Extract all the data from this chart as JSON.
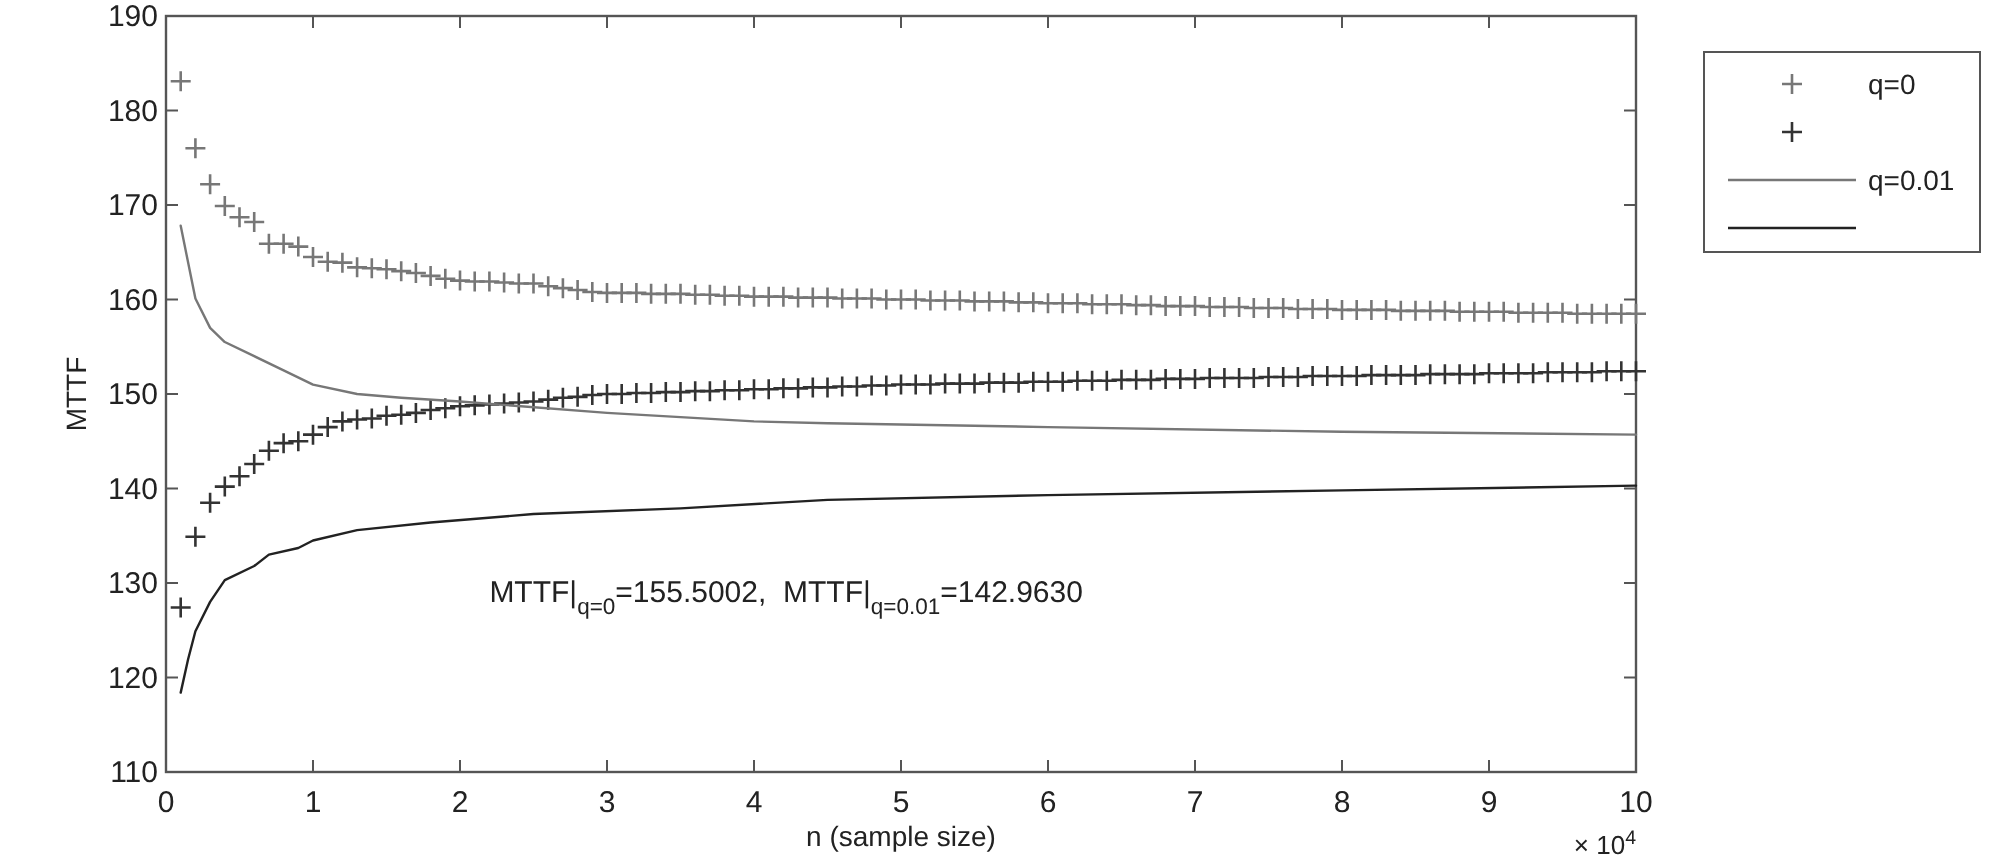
{
  "chart_data": {
    "type": "scatter",
    "xlabel": "n (sample size)",
    "ylabel": "MTTF",
    "x": [
      0.1,
      0.2,
      0.3,
      0.4,
      0.5,
      0.6,
      0.7,
      0.8,
      0.9,
      1.0,
      1.1,
      1.2,
      1.3,
      1.4,
      1.5,
      1.6,
      1.7,
      1.8,
      1.9,
      2.0,
      2.1,
      2.2,
      2.3,
      2.4,
      2.5,
      2.6,
      2.7,
      2.8,
      2.9,
      3.0,
      3.1,
      3.2,
      3.3,
      3.4,
      3.5,
      3.6,
      3.7,
      3.8,
      3.9,
      4.0,
      4.1,
      4.2,
      4.3,
      4.4,
      4.5,
      4.6,
      4.7,
      4.8,
      4.9,
      5.0,
      5.1,
      5.2,
      5.3,
      5.4,
      5.5,
      5.6,
      5.7,
      5.8,
      5.9,
      6.0,
      6.1,
      6.2,
      6.3,
      6.4,
      6.5,
      6.6,
      6.7,
      6.8,
      6.9,
      7.0,
      7.1,
      7.2,
      7.3,
      7.4,
      7.5,
      7.6,
      7.7,
      7.8,
      7.9,
      8.0,
      8.1,
      8.2,
      8.3,
      8.4,
      8.5,
      8.6,
      8.7,
      8.8,
      8.9,
      9.0,
      9.1,
      9.2,
      9.3,
      9.4,
      9.5,
      9.6,
      9.7,
      9.8,
      9.9,
      10.0
    ],
    "series": [
      {
        "name": "q=0",
        "marker": "cross",
        "color": "#777777",
        "values": [
          183.1,
          176,
          172.2,
          169.9,
          168.7,
          168.2,
          165.9,
          165.9,
          165.6,
          164.5,
          164,
          163.9,
          163.4,
          163.3,
          163.2,
          163,
          162.8,
          162.5,
          162.2,
          162,
          161.9,
          161.9,
          161.8,
          161.7,
          161.7,
          161.4,
          161.2,
          161,
          160.8,
          160.7,
          160.7,
          160.7,
          160.6,
          160.6,
          160.6,
          160.5,
          160.5,
          160.4,
          160.4,
          160.3,
          160.3,
          160.3,
          160.2,
          160.2,
          160.2,
          160.1,
          160.1,
          160.1,
          160,
          160,
          160,
          159.9,
          159.9,
          159.9,
          159.8,
          159.8,
          159.8,
          159.7,
          159.7,
          159.6,
          159.6,
          159.6,
          159.5,
          159.5,
          159.5,
          159.4,
          159.4,
          159.3,
          159.3,
          159.3,
          159.2,
          159.2,
          159.2,
          159.1,
          159.1,
          159.1,
          159,
          159,
          159,
          158.9,
          158.9,
          158.9,
          158.9,
          158.8,
          158.8,
          158.8,
          158.8,
          158.7,
          158.7,
          158.7,
          158.7,
          158.6,
          158.6,
          158.6,
          158.6,
          158.5,
          158.5,
          158.5,
          158.5,
          158.5
        ]
      },
      {
        "marker": "cross",
        "color": "#333333",
        "values": [
          127.4,
          134.9,
          138.5,
          140.2,
          141.3,
          142.6,
          144,
          144.8,
          145,
          145.7,
          146.5,
          147.1,
          147.3,
          147.4,
          147.7,
          147.8,
          148,
          148.3,
          148.5,
          148.7,
          148.8,
          148.9,
          149,
          149.1,
          149.2,
          149.4,
          149.6,
          149.7,
          149.9,
          150,
          150,
          150.1,
          150.1,
          150.2,
          150.2,
          150.3,
          150.3,
          150.4,
          150.4,
          150.5,
          150.5,
          150.6,
          150.6,
          150.7,
          150.7,
          150.8,
          150.8,
          150.9,
          150.9,
          151,
          151,
          151,
          151.1,
          151.1,
          151.1,
          151.2,
          151.2,
          151.2,
          151.3,
          151.3,
          151.3,
          151.4,
          151.4,
          151.4,
          151.5,
          151.5,
          151.5,
          151.6,
          151.6,
          151.6,
          151.7,
          151.7,
          151.7,
          151.7,
          151.8,
          151.8,
          151.8,
          151.9,
          151.9,
          151.9,
          151.9,
          152,
          152,
          152,
          152,
          152.1,
          152.1,
          152.1,
          152.1,
          152.2,
          152.2,
          152.2,
          152.2,
          152.3,
          152.3,
          152.3,
          152.3,
          152.4,
          152.4,
          152.4
        ]
      },
      {
        "name": "q=0.01",
        "type": "line",
        "marker": "none",
        "line_style": "solid",
        "color": "#777777",
        "x": [
          0.1,
          0.2,
          0.3,
          0.4,
          0.6,
          0.8,
          1.0,
          1.3,
          1.6,
          2.0,
          3.0,
          4.0,
          4.5,
          6.0,
          8.0,
          10.0
        ],
        "values": [
          167.8,
          160.1,
          157,
          155.5,
          154,
          152.5,
          151,
          150,
          149.6,
          149.2,
          148,
          147.1,
          146.9,
          146.5,
          146,
          145.7
        ]
      },
      {
        "type": "line",
        "marker": "none",
        "line_style": "solid",
        "color": "#222222",
        "x": [
          0.1,
          0.15,
          0.2,
          0.3,
          0.4,
          0.6,
          0.7,
          0.9,
          1.0,
          1.3,
          1.8,
          2.5,
          3.5,
          4.5,
          6.0,
          8.0,
          10.0
        ],
        "values": [
          118.4,
          121.9,
          124.9,
          128,
          130.3,
          131.8,
          133,
          133.7,
          134.5,
          135.6,
          136.4,
          137.3,
          137.9,
          138.8,
          139.3,
          139.8,
          140.3
        ]
      }
    ],
    "xlim": [
      0,
      10
    ],
    "xticks": [
      0,
      1,
      2,
      3,
      4,
      5,
      6,
      7,
      8,
      9,
      10
    ],
    "ylim": [
      110,
      190
    ],
    "yticks": [
      110,
      120,
      130,
      140,
      150,
      160,
      170,
      180,
      190
    ],
    "grid": false,
    "legend": "right",
    "annotations": [
      "MTTF|$_{q=0}$=155.5002,  MTTF|$_{q=0.01}$=142.9630",
      "× 10$^{4}$"
    ]
  }
}
